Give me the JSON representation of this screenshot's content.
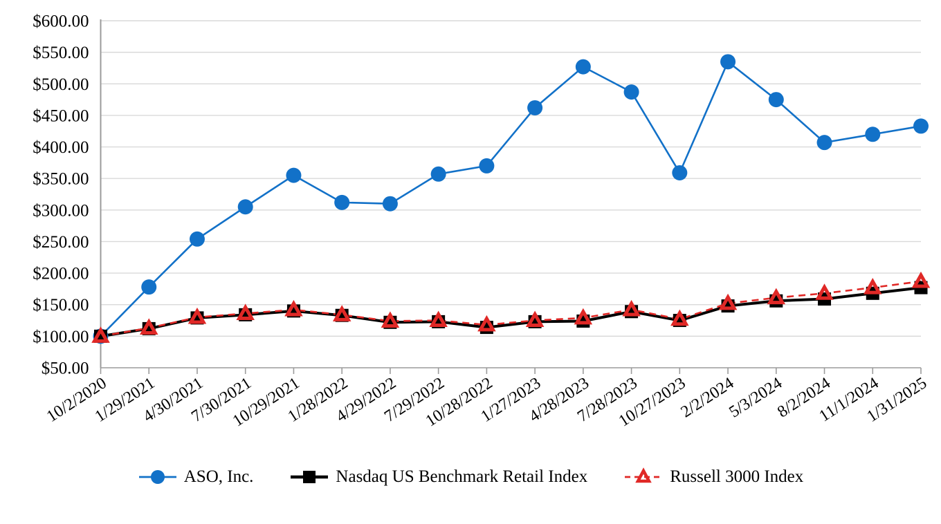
{
  "chart_data": {
    "type": "line",
    "title": "",
    "x_categories": [
      "10/2/2020",
      "1/29/2021",
      "4/30/2021",
      "7/30/2021",
      "10/29/2021",
      "1/28/2022",
      "4/29/2022",
      "7/29/2022",
      "10/28/2022",
      "1/27/2023",
      "4/28/2023",
      "7/28/2023",
      "10/27/2023",
      "2/2/2024",
      "5/3/2024",
      "8/2/2024",
      "11/1/2024",
      "1/31/2025"
    ],
    "y_axis": {
      "min": 50,
      "max": 600,
      "step": 50,
      "tick_labels": [
        "$600.00",
        "$550.00",
        "$500.00",
        "$450.00",
        "$400.00",
        "$350.00",
        "$300.00",
        "$250.00",
        "$200.00",
        "$150.00",
        "$100.00",
        "$50.00"
      ],
      "grid": "horizontal"
    },
    "legend_position": "bottom",
    "series": [
      {
        "name": "ASO, Inc.",
        "color": "#1271C8",
        "marker": "circle",
        "line_style": "solid",
        "values": [
          100,
          178,
          254,
          305,
          355,
          312,
          310,
          357,
          370,
          462,
          527,
          487,
          359,
          535,
          475,
          407,
          420,
          433
        ]
      },
      {
        "name": "Nasdaq US Benchmark Retail Index",
        "color": "#000000",
        "marker": "square",
        "line_style": "solid",
        "values": [
          100,
          112,
          129,
          134,
          140,
          133,
          122,
          123,
          114,
          123,
          124,
          139,
          125,
          148,
          156,
          159,
          168,
          177
        ]
      },
      {
        "name": "Russell 3000 Index",
        "color": "#E02826",
        "marker": "triangle-open",
        "line_style": "dashed",
        "values": [
          100,
          113,
          130,
          136,
          142,
          134,
          124,
          125,
          118,
          125,
          129,
          142,
          127,
          152,
          161,
          168,
          177,
          187
        ]
      }
    ]
  },
  "colors": {
    "gridline": "#D9D9D9",
    "axis": "#9B9B9B",
    "background": "#FFFFFF"
  }
}
